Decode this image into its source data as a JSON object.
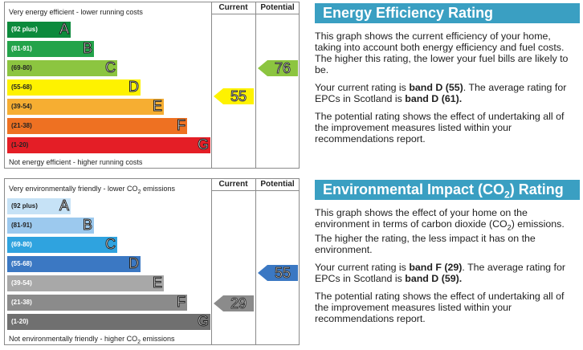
{
  "energy_chart": {
    "col_current": "Current",
    "col_potential": "Potential",
    "top_caption": "Very energy efficient - lower running costs",
    "bottom_caption": "Not energy efficient - higher running costs",
    "bands": [
      {
        "range": "(92 plus)",
        "letter": "A",
        "color": "#0c8a3c",
        "range_color": "#fff"
      },
      {
        "range": "(81-91)",
        "letter": "B",
        "color": "#23a34a",
        "range_color": "#fff"
      },
      {
        "range": "(69-80)",
        "letter": "C",
        "color": "#8cc540",
        "range_color": "#222"
      },
      {
        "range": "(55-68)",
        "letter": "D",
        "color": "#fef200",
        "range_color": "#222"
      },
      {
        "range": "(39-54)",
        "letter": "E",
        "color": "#f6ae32",
        "range_color": "#222"
      },
      {
        "range": "(21-38)",
        "letter": "F",
        "color": "#ee7122",
        "range_color": "#222"
      },
      {
        "range": "(1-20)",
        "letter": "G",
        "color": "#e41e26",
        "range_color": "#222"
      }
    ],
    "current": {
      "value": "55",
      "color": "#fef200"
    },
    "potential": {
      "value": "76",
      "color": "#8cc540"
    }
  },
  "env_chart": {
    "col_current": "Current",
    "col_potential": "Potential",
    "top_caption_pre": "Very environmentally friendly - lower CO",
    "top_caption_sub": "2",
    "top_caption_post": " emissions",
    "bottom_caption_pre": "Not environmentally friendly - higher CO",
    "bottom_caption_sub": "2",
    "bottom_caption_post": " emissions",
    "bands": [
      {
        "range": "(92 plus)",
        "letter": "A",
        "color": "#c6e2f6",
        "range_color": "#222"
      },
      {
        "range": "(81-91)",
        "letter": "B",
        "color": "#9cc9ee",
        "range_color": "#222"
      },
      {
        "range": "(69-80)",
        "letter": "C",
        "color": "#2fa3df",
        "range_color": "#fff"
      },
      {
        "range": "(55-68)",
        "letter": "D",
        "color": "#3b78c3",
        "range_color": "#fff"
      },
      {
        "range": "(39-54)",
        "letter": "E",
        "color": "#a8a8a8",
        "range_color": "#fff"
      },
      {
        "range": "(21-38)",
        "letter": "F",
        "color": "#8b8b8b",
        "range_color": "#fff"
      },
      {
        "range": "(1-20)",
        "letter": "G",
        "color": "#707070",
        "range_color": "#fff"
      }
    ],
    "current": {
      "value": "29",
      "color": "#8b8b8b"
    },
    "potential": {
      "value": "55",
      "color": "#3b78c3"
    }
  },
  "energy_panel": {
    "title": "Energy Efficiency Rating",
    "p1": "This graph shows the current efficiency of your home, taking into account both energy efficiency and fuel costs. The higher this rating, the lower your fuel bills are likely to be.",
    "p2_pre": "Your current rating is ",
    "p2_bold1": "band D (55)",
    "p2_mid": ". The average rating for EPCs in Scotland is ",
    "p2_bold2": "band D (61).",
    "p3": "The potential rating shows the effect of undertaking all of the improvement measures listed within your recommendations report."
  },
  "env_panel": {
    "title_pre": "Environmental Impact (CO",
    "title_sub": "2",
    "title_post": ") Rating",
    "p1_pre": "This graph shows the effect of your home on the environment in terms of carbon dioxide (CO",
    "p1_sub": "2",
    "p1_post": ") emissions. The higher the rating, the less impact it has on the environment.",
    "p2_pre": "Your current rating is ",
    "p2_bold1": "band F (29)",
    "p2_mid": ". The average rating for EPCs in Scotland is ",
    "p2_bold2": "band D (59).",
    "p3": "The potential rating shows the effect of undertaking all of the improvement measures listed within your recommendations report."
  }
}
